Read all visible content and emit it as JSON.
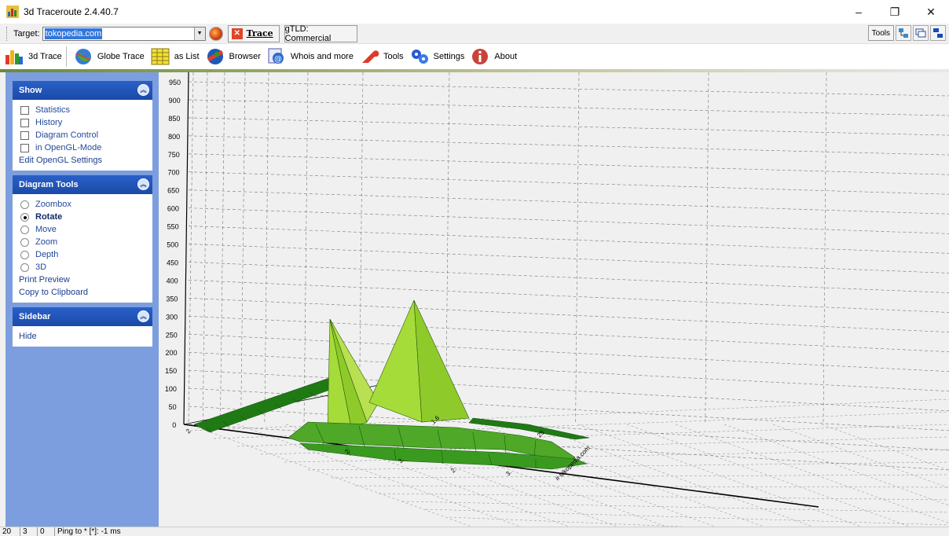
{
  "window": {
    "title": "3d Traceroute 2.4.40.7",
    "minimize": "–",
    "maximize": "❐",
    "close": "✕"
  },
  "address": {
    "target_label": "Target:",
    "target_value": "tokopedia.com",
    "trace_label": "Trace",
    "gtld_label": "gTLD: Commercial",
    "tools_label": "Tools"
  },
  "toolbar": {
    "items": [
      {
        "label": "3d Trace",
        "icon": "3d-chart-icon"
      },
      {
        "label": "Globe Trace",
        "icon": "globe-icon"
      },
      {
        "label": "as List",
        "icon": "list-grid-icon"
      },
      {
        "label": "Browser",
        "icon": "browser-icon"
      },
      {
        "label": "Whois and more",
        "icon": "whois-icon"
      },
      {
        "label": "Tools",
        "icon": "wrench-icon"
      },
      {
        "label": "Settings",
        "icon": "settings-icon"
      },
      {
        "label": "About",
        "icon": "info-icon"
      }
    ]
  },
  "sidebar": {
    "show": {
      "title": "Show",
      "checks": [
        "Statistics",
        "History",
        "Diagram Control",
        "in OpenGL-Mode"
      ],
      "link": "Edit OpenGL Settings"
    },
    "diagram_tools": {
      "title": "Diagram Tools",
      "radios": [
        "Zoombox",
        "Rotate",
        "Move",
        "Zoom",
        "Depth",
        "3D"
      ],
      "selected": "Rotate",
      "links": [
        "Print Preview",
        "Copy to Clipboard"
      ]
    },
    "sidebar_panel": {
      "title": "Sidebar",
      "link": "Hide"
    }
  },
  "chart_data": {
    "type": "area",
    "y_ticks": [
      "950",
      "900",
      "850",
      "800",
      "750",
      "700",
      "650",
      "600",
      "550",
      "500",
      "450",
      "400",
      "350",
      "300",
      "250",
      "200",
      "150",
      "100",
      "50",
      "0"
    ],
    "x_tick_labels": [
      "2",
      "2.",
      "3.",
      "2.",
      "3.",
      "1.6",
      "25"
    ],
    "end_label": "# tokopedia.com",
    "grid": true,
    "colors": {
      "light": "#8ecb2a",
      "mid": "#4fa828",
      "dark": "#1f7a14",
      "back": "#a6dc3a"
    }
  },
  "status": {
    "c1": "20",
    "c2": "3",
    "c3": "0",
    "text": "Ping to * [*]: -1 ms"
  }
}
